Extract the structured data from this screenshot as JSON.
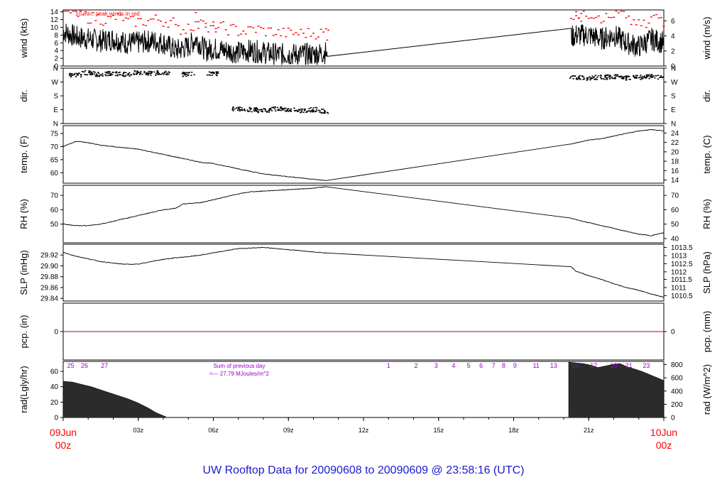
{
  "chart_data": {
    "type": "line",
    "title": "UW Rooftop Data for 20090608  to  20090609 @ 23:58:16  (UTC)",
    "x_range_hours": [
      0,
      24
    ],
    "x_ticks": [
      {
        "h": 0,
        "label": "09Jun",
        "sub": "00z",
        "major": true
      },
      {
        "h": 3,
        "label": "03z"
      },
      {
        "h": 6,
        "label": "06z"
      },
      {
        "h": 9,
        "label": "09z"
      },
      {
        "h": 12,
        "label": "12z"
      },
      {
        "h": 15,
        "label": "15z"
      },
      {
        "h": 18,
        "label": "18z"
      },
      {
        "h": 21,
        "label": "21z"
      },
      {
        "h": 24,
        "label": "10Jun",
        "sub": "00z",
        "major": true
      }
    ],
    "colors": {
      "frame": "#000000",
      "peak": "#ff0000",
      "date": "#ff0000",
      "title": "#1a1ad0",
      "note": "#9900cc",
      "pcp": "#cc0000"
    },
    "panels": [
      {
        "key": "wind",
        "left_label": "wind (kts)",
        "right_label": "wind (m/s)",
        "ylim": [
          0,
          14.5
        ],
        "left_ticks": [
          0,
          2,
          4,
          6,
          8,
          10,
          12,
          14
        ],
        "right_ticks": [
          {
            "v": 0,
            "label": "0"
          },
          {
            "v": 3.89,
            "label": "2"
          },
          {
            "v": 7.78,
            "label": "4"
          },
          {
            "v": 11.66,
            "label": "6"
          }
        ],
        "note": "10 min. peak winds in red",
        "series": [
          {
            "h": 0,
            "v": 9
          },
          {
            "h": 0.5,
            "v": 7.5
          },
          {
            "h": 1,
            "v": 7
          },
          {
            "h": 1.5,
            "v": 6.5
          },
          {
            "h": 2,
            "v": 7
          },
          {
            "h": 2.5,
            "v": 6
          },
          {
            "h": 3,
            "v": 6
          },
          {
            "h": 3.5,
            "v": 6.5
          },
          {
            "h": 4,
            "v": 6
          },
          {
            "h": 4.5,
            "v": 4
          },
          {
            "h": 5,
            "v": 5
          },
          {
            "h": 5.3,
            "v": 7
          },
          {
            "h": 5.7,
            "v": 4
          },
          {
            "h": 6,
            "v": 4.5
          },
          {
            "h": 6.5,
            "v": 4
          },
          {
            "h": 7,
            "v": 3.5
          },
          {
            "h": 7.5,
            "v": 4
          },
          {
            "h": 8,
            "v": 3.5
          },
          {
            "h": 8.5,
            "v": 3
          },
          {
            "h": 9,
            "v": 3
          },
          {
            "h": 9.5,
            "v": 3
          },
          {
            "h": 10,
            "v": 3
          },
          {
            "h": 10.5,
            "v": 3.5
          },
          {
            "h": 10.55,
            "v": 2.5
          },
          {
            "h": 20.3,
            "v": 7.5
          },
          {
            "h": 20.5,
            "v": 8
          },
          {
            "h": 21,
            "v": 8
          },
          {
            "h": 21.5,
            "v": 7
          },
          {
            "h": 22,
            "v": 8
          },
          {
            "h": 22.5,
            "v": 6
          },
          {
            "h": 23,
            "v": 5
          },
          {
            "h": 23.5,
            "v": 7
          },
          {
            "h": 24,
            "v": 6
          }
        ]
      },
      {
        "key": "dir",
        "left_label": "dir.",
        "right_label": "dir.",
        "ylim": [
          0,
          360
        ],
        "left_ticks": [
          {
            "v": 0,
            "label": "N"
          },
          {
            "v": 90,
            "label": "E"
          },
          {
            "v": 180,
            "label": "S"
          },
          {
            "v": 270,
            "label": "W"
          },
          {
            "v": 360,
            "label": "N"
          }
        ],
        "right_ticks": [
          {
            "v": 0,
            "label": "N"
          },
          {
            "v": 90,
            "label": "E"
          },
          {
            "v": 180,
            "label": "S"
          },
          {
            "v": 270,
            "label": "W"
          },
          {
            "v": 360,
            "label": "N"
          }
        ],
        "series": [
          {
            "h": 0.5,
            "v": 315
          },
          {
            "h": 1.0,
            "v": 330
          },
          {
            "h": 1.5,
            "v": 320
          },
          {
            "h": 2.0,
            "v": 325
          },
          {
            "h": 2.5,
            "v": 320
          },
          {
            "h": 3.0,
            "v": 330
          },
          {
            "h": 3.5,
            "v": 325
          },
          {
            "h": 4.0,
            "v": 330
          },
          {
            "h": 5.0,
            "v": 320
          },
          {
            "h": 6.0,
            "v": 325
          },
          {
            "h": 7.0,
            "v": 95
          },
          {
            "h": 7.5,
            "v": 90
          },
          {
            "h": 8.0,
            "v": 85
          },
          {
            "h": 8.5,
            "v": 95
          },
          {
            "h": 9.0,
            "v": 90
          },
          {
            "h": 9.5,
            "v": 85
          },
          {
            "h": 10.0,
            "v": 90
          },
          {
            "h": 10.5,
            "v": 80
          },
          {
            "h": 20.5,
            "v": 300
          },
          {
            "h": 21.0,
            "v": 295
          },
          {
            "h": 21.5,
            "v": 300
          },
          {
            "h": 22.0,
            "v": 305
          },
          {
            "h": 22.5,
            "v": 295
          },
          {
            "h": 23.0,
            "v": 300
          },
          {
            "h": 23.5,
            "v": 305
          },
          {
            "h": 24.0,
            "v": 300
          }
        ]
      },
      {
        "key": "temp",
        "left_label": "temp. (F)",
        "right_label": "temp. (C)",
        "ylim": [
          56,
          78
        ],
        "left_ticks": [
          60,
          65,
          70,
          75
        ],
        "right_ticks": [
          {
            "v": 57.2,
            "label": "14"
          },
          {
            "v": 60.8,
            "label": "16"
          },
          {
            "v": 64.4,
            "label": "18"
          },
          {
            "v": 68.0,
            "label": "20"
          },
          {
            "v": 71.6,
            "label": "22"
          },
          {
            "v": 75.2,
            "label": "24"
          }
        ],
        "series": [
          {
            "h": 0,
            "v": 70
          },
          {
            "h": 0.5,
            "v": 72
          },
          {
            "h": 1,
            "v": 71.5
          },
          {
            "h": 1.5,
            "v": 70.5
          },
          {
            "h": 2,
            "v": 70
          },
          {
            "h": 2.5,
            "v": 69.5
          },
          {
            "h": 3,
            "v": 69
          },
          {
            "h": 3.5,
            "v": 68
          },
          {
            "h": 4,
            "v": 67
          },
          {
            "h": 4.5,
            "v": 66
          },
          {
            "h": 5,
            "v": 65
          },
          {
            "h": 5.5,
            "v": 64
          },
          {
            "h": 6,
            "v": 63.5
          },
          {
            "h": 6.5,
            "v": 62.5
          },
          {
            "h": 7,
            "v": 61.5
          },
          {
            "h": 7.5,
            "v": 60.5
          },
          {
            "h": 8,
            "v": 59.5
          },
          {
            "h": 8.5,
            "v": 59
          },
          {
            "h": 9,
            "v": 58.5
          },
          {
            "h": 9.5,
            "v": 58
          },
          {
            "h": 10,
            "v": 57.5
          },
          {
            "h": 10.5,
            "v": 57
          },
          {
            "h": 20.3,
            "v": 71
          },
          {
            "h": 21,
            "v": 72.5
          },
          {
            "h": 21.5,
            "v": 73
          },
          {
            "h": 22,
            "v": 74
          },
          {
            "h": 22.5,
            "v": 75
          },
          {
            "h": 23,
            "v": 76
          },
          {
            "h": 23.5,
            "v": 76.5
          },
          {
            "h": 24,
            "v": 76
          }
        ]
      },
      {
        "key": "rh",
        "left_label": "RH (%)",
        "right_label": "RH (%)",
        "ylim": [
          37,
          77
        ],
        "left_ticks": [
          50,
          60,
          70
        ],
        "right_ticks": [
          {
            "v": 40,
            "label": "40"
          },
          {
            "v": 50,
            "label": "50"
          },
          {
            "v": 60,
            "label": "60"
          },
          {
            "v": 70,
            "label": "70"
          }
        ],
        "series": [
          {
            "h": 0,
            "v": 50
          },
          {
            "h": 0.5,
            "v": 49
          },
          {
            "h": 1,
            "v": 49
          },
          {
            "h": 1.5,
            "v": 50
          },
          {
            "h": 2,
            "v": 52
          },
          {
            "h": 2.5,
            "v": 54
          },
          {
            "h": 3,
            "v": 56
          },
          {
            "h": 3.5,
            "v": 58
          },
          {
            "h": 4,
            "v": 60
          },
          {
            "h": 4.5,
            "v": 61
          },
          {
            "h": 4.8,
            "v": 64
          },
          {
            "h": 5.5,
            "v": 65
          },
          {
            "h": 6,
            "v": 67
          },
          {
            "h": 6.5,
            "v": 69
          },
          {
            "h": 7,
            "v": 71
          },
          {
            "h": 7.5,
            "v": 72.5
          },
          {
            "h": 8,
            "v": 73
          },
          {
            "h": 8.5,
            "v": 73.5
          },
          {
            "h": 9,
            "v": 74
          },
          {
            "h": 9.5,
            "v": 74.5
          },
          {
            "h": 10,
            "v": 75
          },
          {
            "h": 10.5,
            "v": 76
          },
          {
            "h": 20.3,
            "v": 54
          },
          {
            "h": 21,
            "v": 51
          },
          {
            "h": 21.5,
            "v": 49
          },
          {
            "h": 22,
            "v": 47
          },
          {
            "h": 22.5,
            "v": 45
          },
          {
            "h": 23,
            "v": 43
          },
          {
            "h": 23.5,
            "v": 42
          },
          {
            "h": 24,
            "v": 44
          }
        ]
      },
      {
        "key": "slp",
        "left_label": "SLP (inHg)",
        "right_label": "SLP (hPa)",
        "ylim": [
          29.835,
          29.94
        ],
        "left_ticks": [
          {
            "v": 29.84,
            "label": "29.84"
          },
          {
            "v": 29.86,
            "label": "29.86"
          },
          {
            "v": 29.88,
            "label": "29.88"
          },
          {
            "v": 29.9,
            "label": "29.90"
          },
          {
            "v": 29.92,
            "label": "29.92"
          }
        ],
        "right_ticks": [
          {
            "v": 29.845,
            "label": "1010.5"
          },
          {
            "v": 29.86,
            "label": "1011"
          },
          {
            "v": 29.875,
            "label": "1011.5"
          },
          {
            "v": 29.889,
            "label": "1012"
          },
          {
            "v": 29.904,
            "label": "1012.5"
          },
          {
            "v": 29.919,
            "label": "1013"
          },
          {
            "v": 29.934,
            "label": "1013.5"
          }
        ],
        "series": [
          {
            "h": 0,
            "v": 29.925
          },
          {
            "h": 0.5,
            "v": 29.918
          },
          {
            "h": 1,
            "v": 29.913
          },
          {
            "h": 1.5,
            "v": 29.908
          },
          {
            "h": 2,
            "v": 29.905
          },
          {
            "h": 2.5,
            "v": 29.903
          },
          {
            "h": 3,
            "v": 29.903
          },
          {
            "h": 3.5,
            "v": 29.908
          },
          {
            "h": 4,
            "v": 29.912
          },
          {
            "h": 4.5,
            "v": 29.915
          },
          {
            "h": 5,
            "v": 29.917
          },
          {
            "h": 5.5,
            "v": 29.92
          },
          {
            "h": 6,
            "v": 29.924
          },
          {
            "h": 6.5,
            "v": 29.928
          },
          {
            "h": 7,
            "v": 29.932
          },
          {
            "h": 7.5,
            "v": 29.933
          },
          {
            "h": 8,
            "v": 29.934
          },
          {
            "h": 8.5,
            "v": 29.932
          },
          {
            "h": 9,
            "v": 29.93
          },
          {
            "h": 9.5,
            "v": 29.928
          },
          {
            "h": 10,
            "v": 29.926
          },
          {
            "h": 10.5,
            "v": 29.924
          },
          {
            "h": 20.3,
            "v": 29.898
          },
          {
            "h": 20.5,
            "v": 29.89
          },
          {
            "h": 21,
            "v": 29.882
          },
          {
            "h": 21.5,
            "v": 29.875
          },
          {
            "h": 22,
            "v": 29.867
          },
          {
            "h": 22.5,
            "v": 29.86
          },
          {
            "h": 23,
            "v": 29.855
          },
          {
            "h": 23.5,
            "v": 29.848
          },
          {
            "h": 24,
            "v": 29.842
          }
        ]
      },
      {
        "key": "pcp",
        "left_label": "pcp. (in)",
        "right_label": "pcp. (mm)",
        "ylim": [
          -0.1,
          0.1
        ],
        "left_ticks": [
          {
            "v": 0,
            "label": "0"
          }
        ],
        "right_ticks": [
          {
            "v": 0,
            "label": "0"
          }
        ],
        "series": [
          {
            "h": 0,
            "v": 0
          },
          {
            "h": 24,
            "v": 0
          }
        ]
      },
      {
        "key": "rad",
        "left_label": "rad(Lgly/hr)",
        "right_label": "rad (W/m^2)",
        "ylim": [
          0,
          73
        ],
        "left_ticks": [
          0,
          20,
          40,
          60
        ],
        "right_ticks": [
          {
            "v": 0,
            "label": "0"
          },
          {
            "v": 17.2,
            "label": "200"
          },
          {
            "v": 34.4,
            "label": "400"
          },
          {
            "v": 51.6,
            "label": "600"
          },
          {
            "v": 68.8,
            "label": "800"
          }
        ],
        "note_hour_labels": [
          {
            "h": 0.3,
            "label": "25"
          },
          {
            "h": 0.85,
            "label": "26"
          },
          {
            "h": 1.65,
            "label": "27"
          },
          {
            "h": 13.0,
            "label": "1"
          },
          {
            "h": 14.1,
            "label": "2"
          },
          {
            "h": 14.9,
            "label": "3"
          },
          {
            "h": 15.6,
            "label": "4"
          },
          {
            "h": 16.2,
            "label": "5"
          },
          {
            "h": 16.7,
            "label": "6"
          },
          {
            "h": 17.2,
            "label": "7"
          },
          {
            "h": 17.6,
            "label": "8"
          },
          {
            "h": 18.05,
            "label": "9"
          },
          {
            "h": 18.9,
            "label": "11"
          },
          {
            "h": 19.6,
            "label": "13"
          },
          {
            "h": 20.45,
            "label": "15"
          },
          {
            "h": 21.2,
            "label": "17"
          },
          {
            "h": 22.0,
            "label": "19"
          },
          {
            "h": 22.6,
            "label": "21"
          },
          {
            "h": 23.3,
            "label": "23"
          }
        ],
        "sum_note": "Sum of previous day",
        "sum_value": "<--- 27.79 MJoules/m^2",
        "bars_segments": [
          {
            "start": 0,
            "end": 4.1,
            "values": [
              47,
              46,
              43,
              40,
              36,
              32,
              28,
              24,
              19,
              13,
              6,
              1
            ]
          },
          {
            "start": 20.2,
            "end": 24,
            "values": [
              72,
              71,
              70,
              68,
              65,
              67,
              69,
              70,
              66,
              63,
              60,
              56,
              52,
              48
            ]
          }
        ]
      }
    ]
  }
}
